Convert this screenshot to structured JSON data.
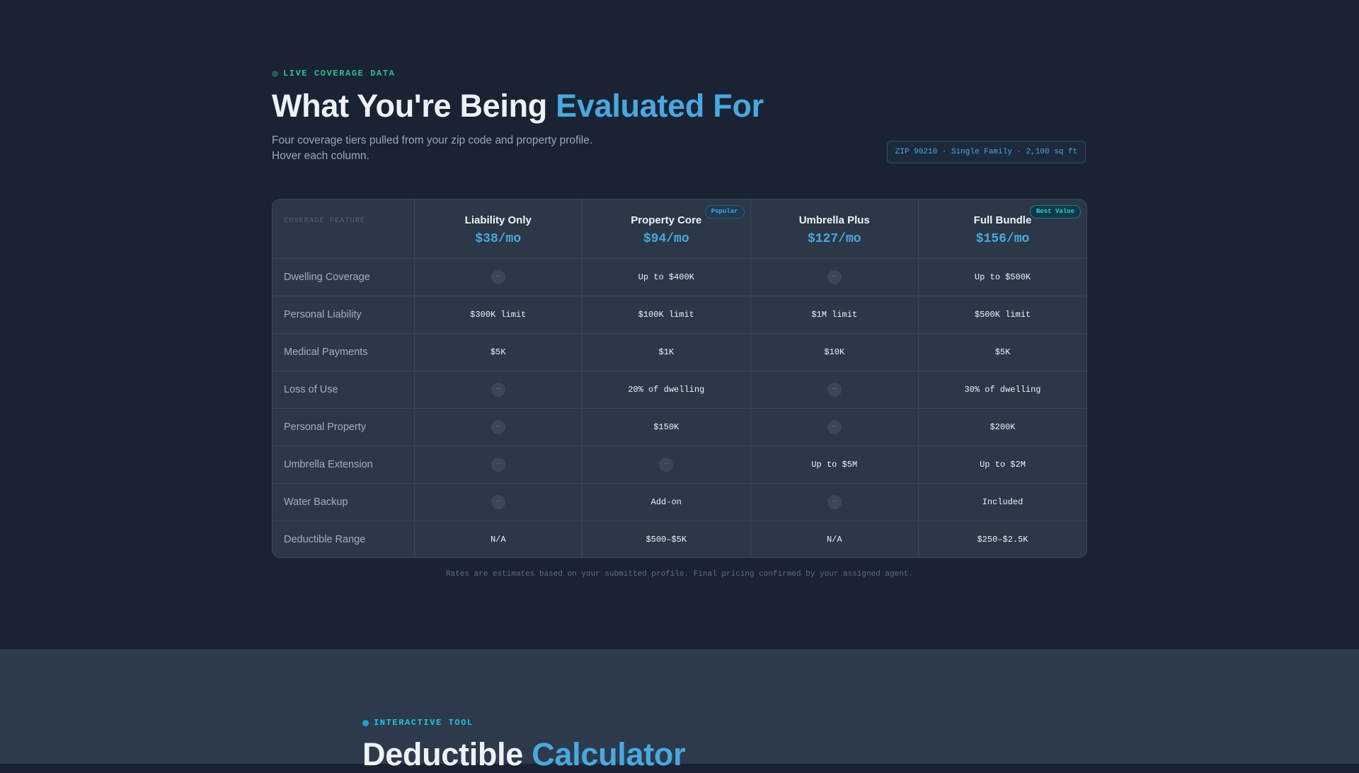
{
  "coverage_section": {
    "eyebrow": "LIVE COVERAGE DATA",
    "title_main": "What You're Being ",
    "title_accent": "Evaluated For",
    "subtitle_line1": "Four coverage tiers pulled from your zip code and property profile.",
    "subtitle_line2": "Hover each column.",
    "profile_chip": "ZIP 90210 · Single Family · 2,100 sq ft",
    "feature_header": "COVERAGE FEATURE",
    "tiers": [
      {
        "name": "Liability Only",
        "price": "$38/mo",
        "badge": ""
      },
      {
        "name": "Property Core",
        "price": "$94/mo",
        "badge": "Popular"
      },
      {
        "name": "Umbrella Plus",
        "price": "$127/mo",
        "badge": ""
      },
      {
        "name": "Full Bundle",
        "price": "$156/mo",
        "badge": "Best Value"
      }
    ],
    "rows": [
      {
        "feature": "Dwelling Coverage",
        "values": [
          "—",
          "Up to $400K",
          "—",
          "Up to $500K"
        ]
      },
      {
        "feature": "Personal Liability",
        "values": [
          "$300K limit",
          "$100K limit",
          "$1M limit",
          "$500K limit"
        ]
      },
      {
        "feature": "Medical Payments",
        "values": [
          "$5K",
          "$1K",
          "$10K",
          "$5K"
        ]
      },
      {
        "feature": "Loss of Use",
        "values": [
          "—",
          "20% of dwelling",
          "—",
          "30% of dwelling"
        ]
      },
      {
        "feature": "Personal Property",
        "values": [
          "—",
          "$150K",
          "—",
          "$200K"
        ]
      },
      {
        "feature": "Umbrella Extension",
        "values": [
          "—",
          "—",
          "Up to $5M",
          "Up to $2M"
        ]
      },
      {
        "feature": "Water Backup",
        "values": [
          "—",
          "Add-on",
          "—",
          "Included"
        ]
      },
      {
        "feature": "Deductible Range",
        "values": [
          "N/A",
          "$500–$5K",
          "N/A",
          "$250–$2.5K"
        ]
      }
    ],
    "footnote": "Rates are estimates based on your submitted profile. Final pricing confirmed by your assigned agent."
  },
  "calculator_section": {
    "eyebrow": "INTERACTIVE TOOL",
    "title_main": "Deductible ",
    "title_accent": "Calculator"
  },
  "colors": {
    "background": "#1a2333",
    "panel": "#2c3848",
    "accent_blue": "#4aa8de",
    "accent_green": "#2fbf8f",
    "accent_cyan": "#22c3d8"
  },
  "icons": {
    "not_included": "dash-icon",
    "status": "live-dot-icon"
  }
}
